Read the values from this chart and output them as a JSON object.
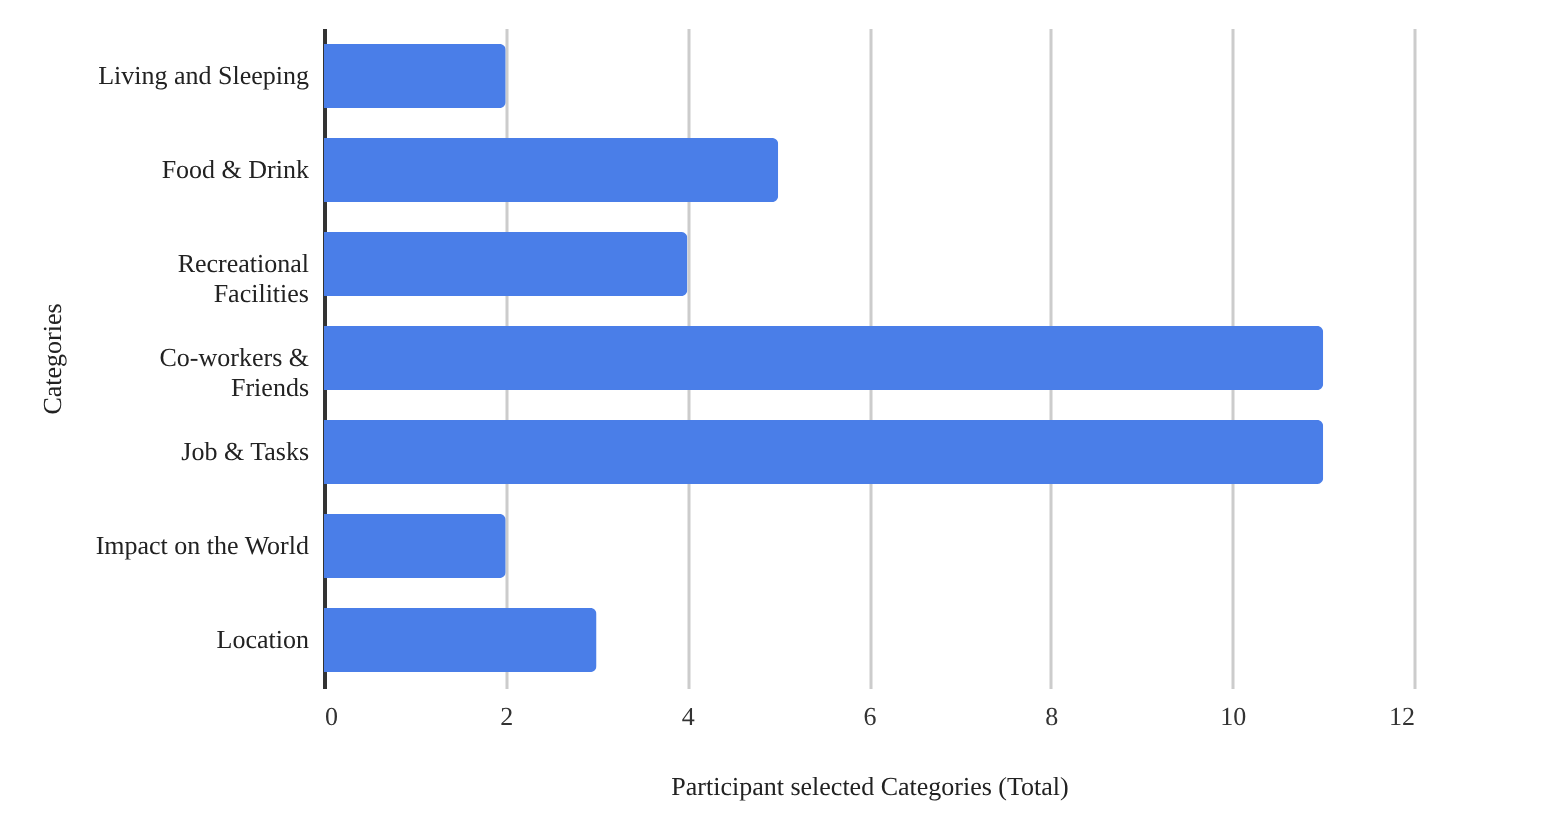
{
  "chart_data": {
    "type": "bar",
    "orientation": "horizontal",
    "xlabel": "Participant selected Categories (Total)",
    "ylabel": "Categories",
    "categories": [
      "Living and Sleeping",
      "Food & Drink",
      "Recreational Facilities",
      "Co-workers & Friends",
      "Job & Tasks",
      "Impact on the World",
      "Location"
    ],
    "values": [
      2,
      5,
      4,
      11,
      11,
      2,
      3
    ],
    "color": "#4a7ee8",
    "xlim": [
      0,
      12
    ],
    "xticks": [
      0,
      2,
      4,
      6,
      8,
      10,
      12
    ],
    "grid": "x"
  }
}
